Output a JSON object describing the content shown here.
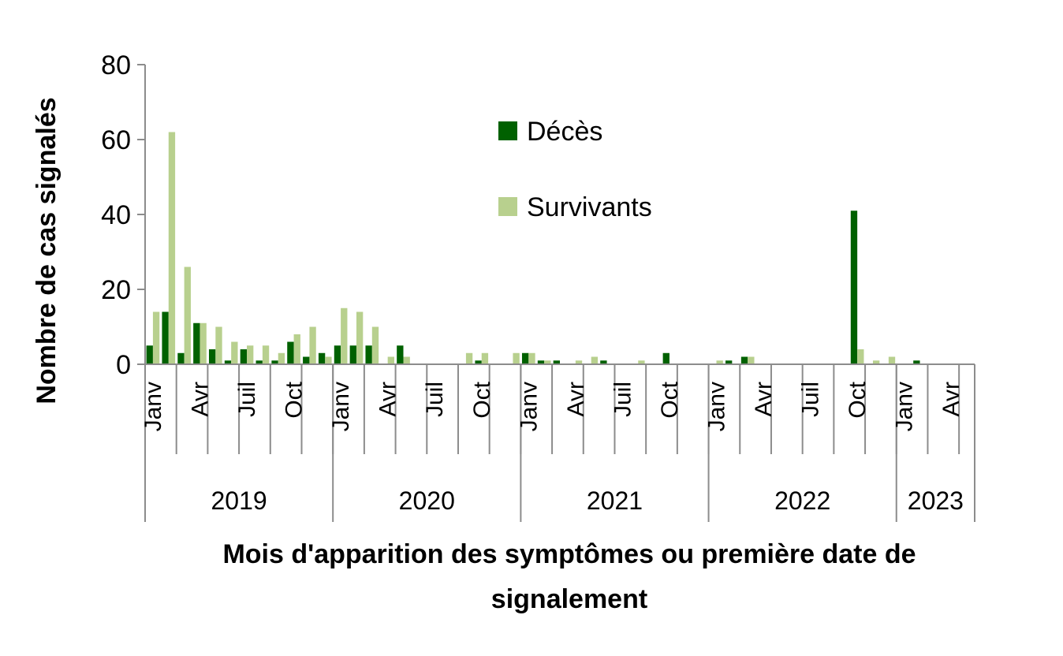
{
  "chart_data": {
    "type": "bar",
    "title": "",
    "ylabel": "Nombre de cas signalés",
    "xlabel_lines": [
      "Mois d'apparition des symptômes ou première date de",
      "signalement"
    ],
    "ylim": [
      0,
      80
    ],
    "yticks": [
      0,
      20,
      40,
      60,
      80
    ],
    "grid": false,
    "legend_position": "top-center",
    "month_labels": [
      "Janv",
      "",
      "",
      "Avr",
      "",
      "",
      "Juil",
      "",
      "",
      "Oct",
      "",
      "",
      "Janv",
      "",
      "",
      "Avr",
      "",
      "",
      "Juil",
      "",
      "",
      "Oct",
      "",
      "",
      "Janv",
      "",
      "",
      "Avr",
      "",
      "",
      "Juil",
      "",
      "",
      "Oct",
      "",
      "",
      "Janv",
      "",
      "",
      "Avr",
      "",
      "",
      "Juil",
      "",
      "",
      "Oct",
      "",
      "",
      "Janv",
      "",
      "",
      "Avr",
      ""
    ],
    "years": [
      {
        "label": "2019",
        "months": 12
      },
      {
        "label": "2020",
        "months": 12
      },
      {
        "label": "2021",
        "months": 12
      },
      {
        "label": "2022",
        "months": 12
      },
      {
        "label": "2023",
        "months": 5
      }
    ],
    "series": [
      {
        "name": "Décès",
        "color": "#006100",
        "values": [
          5,
          14,
          3,
          11,
          4,
          1,
          4,
          1,
          1,
          6,
          2,
          3,
          5,
          5,
          5,
          0,
          5,
          0,
          0,
          0,
          0,
          1,
          0,
          0,
          3,
          1,
          1,
          0,
          0,
          1,
          0,
          0,
          0,
          3,
          0,
          0,
          0,
          1,
          2,
          0,
          0,
          0,
          0,
          0,
          0,
          41,
          0,
          0,
          0,
          1,
          0,
          0,
          0
        ]
      },
      {
        "name": "Survivants",
        "color": "#b8d08e",
        "values": [
          14,
          62,
          26,
          11,
          10,
          6,
          5,
          5,
          3,
          8,
          10,
          2,
          15,
          14,
          10,
          2,
          2,
          0,
          0,
          0,
          3,
          3,
          0,
          3,
          3,
          1,
          0,
          1,
          2,
          0,
          0,
          1,
          0,
          0,
          0,
          0,
          1,
          0,
          2,
          0,
          0,
          0,
          0,
          0,
          0,
          4,
          1,
          2,
          0,
          0,
          0,
          0,
          0
        ]
      }
    ]
  }
}
